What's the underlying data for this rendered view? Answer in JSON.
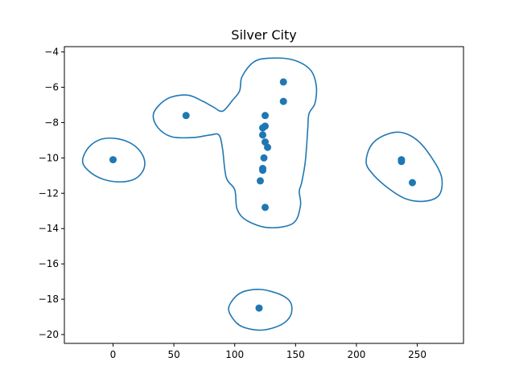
{
  "chart_data": {
    "type": "scatter",
    "title": "Silver City",
    "xlabel": "",
    "ylabel": "",
    "xlim": [
      -40,
      288
    ],
    "ylim": [
      -20.5,
      -3.7
    ],
    "xticks": [
      0,
      50,
      100,
      150,
      200,
      250
    ],
    "yticks": [
      -20,
      -18,
      -16,
      -14,
      -12,
      -10,
      -8,
      -6,
      -4
    ],
    "grid": false,
    "color": "#1f77b4",
    "points": [
      {
        "x": 0,
        "y": -10.1
      },
      {
        "x": 60,
        "y": -7.6
      },
      {
        "x": 140,
        "y": -5.7
      },
      {
        "x": 140,
        "y": -6.8
      },
      {
        "x": 125,
        "y": -7.6
      },
      {
        "x": 125,
        "y": -8.2
      },
      {
        "x": 123,
        "y": -8.3
      },
      {
        "x": 123,
        "y": -8.7
      },
      {
        "x": 125,
        "y": -9.1
      },
      {
        "x": 127,
        "y": -9.4
      },
      {
        "x": 124,
        "y": -10.0
      },
      {
        "x": 123,
        "y": -10.6
      },
      {
        "x": 123,
        "y": -10.7
      },
      {
        "x": 121,
        "y": -11.3
      },
      {
        "x": 125,
        "y": -12.8
      },
      {
        "x": 120,
        "y": -18.5
      },
      {
        "x": 237,
        "y": -10.1
      },
      {
        "x": 237,
        "y": -10.2
      },
      {
        "x": 246,
        "y": -11.4
      }
    ],
    "contours": [
      [
        [
          -25,
          -10.1
        ],
        [
          -20,
          -9.4
        ],
        [
          -10,
          -8.95
        ],
        [
          2,
          -8.9
        ],
        [
          14,
          -9.15
        ],
        [
          22,
          -9.6
        ],
        [
          26,
          -10.2
        ],
        [
          24,
          -10.8
        ],
        [
          16,
          -11.25
        ],
        [
          2,
          -11.35
        ],
        [
          -12,
          -11.1
        ],
        [
          -22,
          -10.6
        ],
        [
          -25,
          -10.1
        ]
      ],
      [
        [
          33,
          -7.6
        ],
        [
          38,
          -7.0
        ],
        [
          48,
          -6.55
        ],
        [
          62,
          -6.45
        ],
        [
          74,
          -6.8
        ],
        [
          82,
          -7.1
        ],
        [
          90,
          -7.35
        ],
        [
          98,
          -6.75
        ],
        [
          104,
          -6.2
        ],
        [
          106,
          -5.4
        ],
        [
          116,
          -4.55
        ],
        [
          130,
          -4.35
        ],
        [
          148,
          -4.45
        ],
        [
          162,
          -5.0
        ],
        [
          167,
          -5.9
        ],
        [
          166,
          -6.9
        ],
        [
          161,
          -7.5
        ],
        [
          160,
          -8.4
        ],
        [
          158,
          -10.2
        ],
        [
          155,
          -11.4
        ],
        [
          153,
          -11.9
        ],
        [
          154,
          -12.7
        ],
        [
          148,
          -13.7
        ],
        [
          128,
          -13.95
        ],
        [
          110,
          -13.55
        ],
        [
          102,
          -12.9
        ],
        [
          100,
          -11.8
        ],
        [
          93,
          -11.1
        ],
        [
          90,
          -9.5
        ],
        [
          87,
          -8.7
        ],
        [
          80,
          -8.7
        ],
        [
          65,
          -8.85
        ],
        [
          48,
          -8.8
        ],
        [
          37,
          -8.3
        ],
        [
          33,
          -7.6
        ]
      ],
      [
        [
          208,
          -10.2
        ],
        [
          212,
          -9.3
        ],
        [
          222,
          -8.75
        ],
        [
          236,
          -8.55
        ],
        [
          250,
          -9.0
        ],
        [
          262,
          -10.0
        ],
        [
          270,
          -11.1
        ],
        [
          268,
          -12.1
        ],
        [
          256,
          -12.45
        ],
        [
          240,
          -12.3
        ],
        [
          224,
          -11.6
        ],
        [
          212,
          -10.8
        ],
        [
          208,
          -10.2
        ]
      ],
      [
        [
          95,
          -18.5
        ],
        [
          100,
          -17.9
        ],
        [
          108,
          -17.55
        ],
        [
          122,
          -17.45
        ],
        [
          138,
          -17.75
        ],
        [
          146,
          -18.2
        ],
        [
          146,
          -18.9
        ],
        [
          138,
          -19.45
        ],
        [
          122,
          -19.75
        ],
        [
          106,
          -19.55
        ],
        [
          98,
          -19.05
        ],
        [
          95,
          -18.5
        ]
      ]
    ]
  }
}
